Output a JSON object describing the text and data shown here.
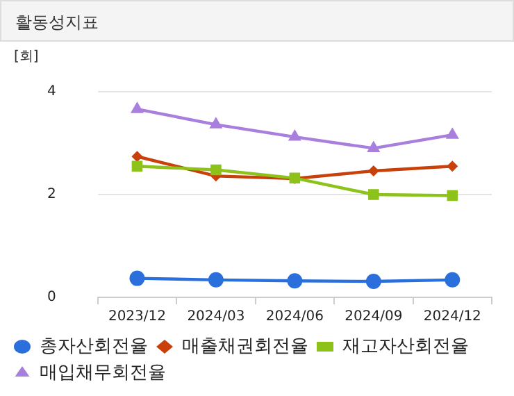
{
  "chart_data": {
    "type": "line",
    "title": "활동성지표",
    "ylabel": "[회]",
    "categories": [
      "2023/12",
      "2024/03",
      "2024/06",
      "2024/09",
      "2024/12"
    ],
    "series": [
      {
        "name": "총자산회전율",
        "color": "#2a6fdb",
        "marker": "circle",
        "values": [
          0.37,
          0.34,
          0.32,
          0.31,
          0.34
        ]
      },
      {
        "name": "매출채권회전율",
        "color": "#c8400a",
        "marker": "diamond",
        "values": [
          2.74,
          2.36,
          2.31,
          2.46,
          2.55
        ]
      },
      {
        "name": "재고자산회전율",
        "color": "#8cc21a",
        "marker": "square",
        "values": [
          2.55,
          2.48,
          2.32,
          2.0,
          1.98
        ]
      },
      {
        "name": "매입채무회전율",
        "color": "#a97fdd",
        "marker": "triangle",
        "values": [
          3.66,
          3.36,
          3.12,
          2.9,
          3.16
        ]
      }
    ],
    "ylim": [
      0,
      4
    ],
    "yticks": [
      0,
      2,
      4
    ],
    "grid": "y",
    "legend": "bottom"
  }
}
